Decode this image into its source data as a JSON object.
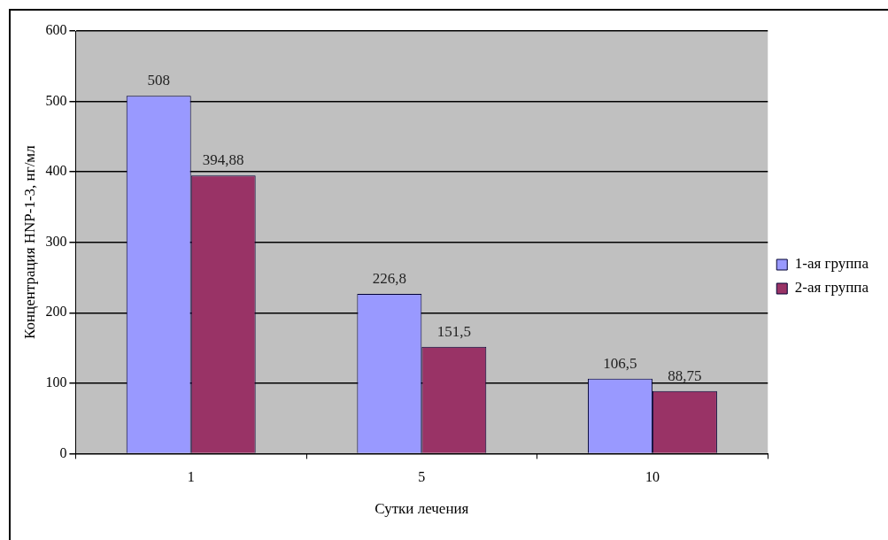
{
  "chart_data": {
    "type": "bar",
    "xlabel": "Сутки лечения",
    "ylabel": "Концентрация HNP-1-3, нг/мл",
    "categories": [
      "1",
      "5",
      "10"
    ],
    "series": [
      {
        "name": "1-ая группа",
        "color": "#9999ff",
        "values": [
          508,
          226.8,
          106.5
        ],
        "value_labels": [
          "508",
          "226,8",
          "106,5"
        ]
      },
      {
        "name": "2-ая группа",
        "color": "#993366",
        "values": [
          394.88,
          151.5,
          88.75
        ],
        "value_labels": [
          "394,88",
          "151,5",
          "88,75"
        ]
      }
    ],
    "ylim": [
      0,
      600
    ],
    "yticks": [
      0,
      100,
      200,
      300,
      400,
      500,
      600
    ],
    "grid": "y",
    "legend": "right"
  }
}
